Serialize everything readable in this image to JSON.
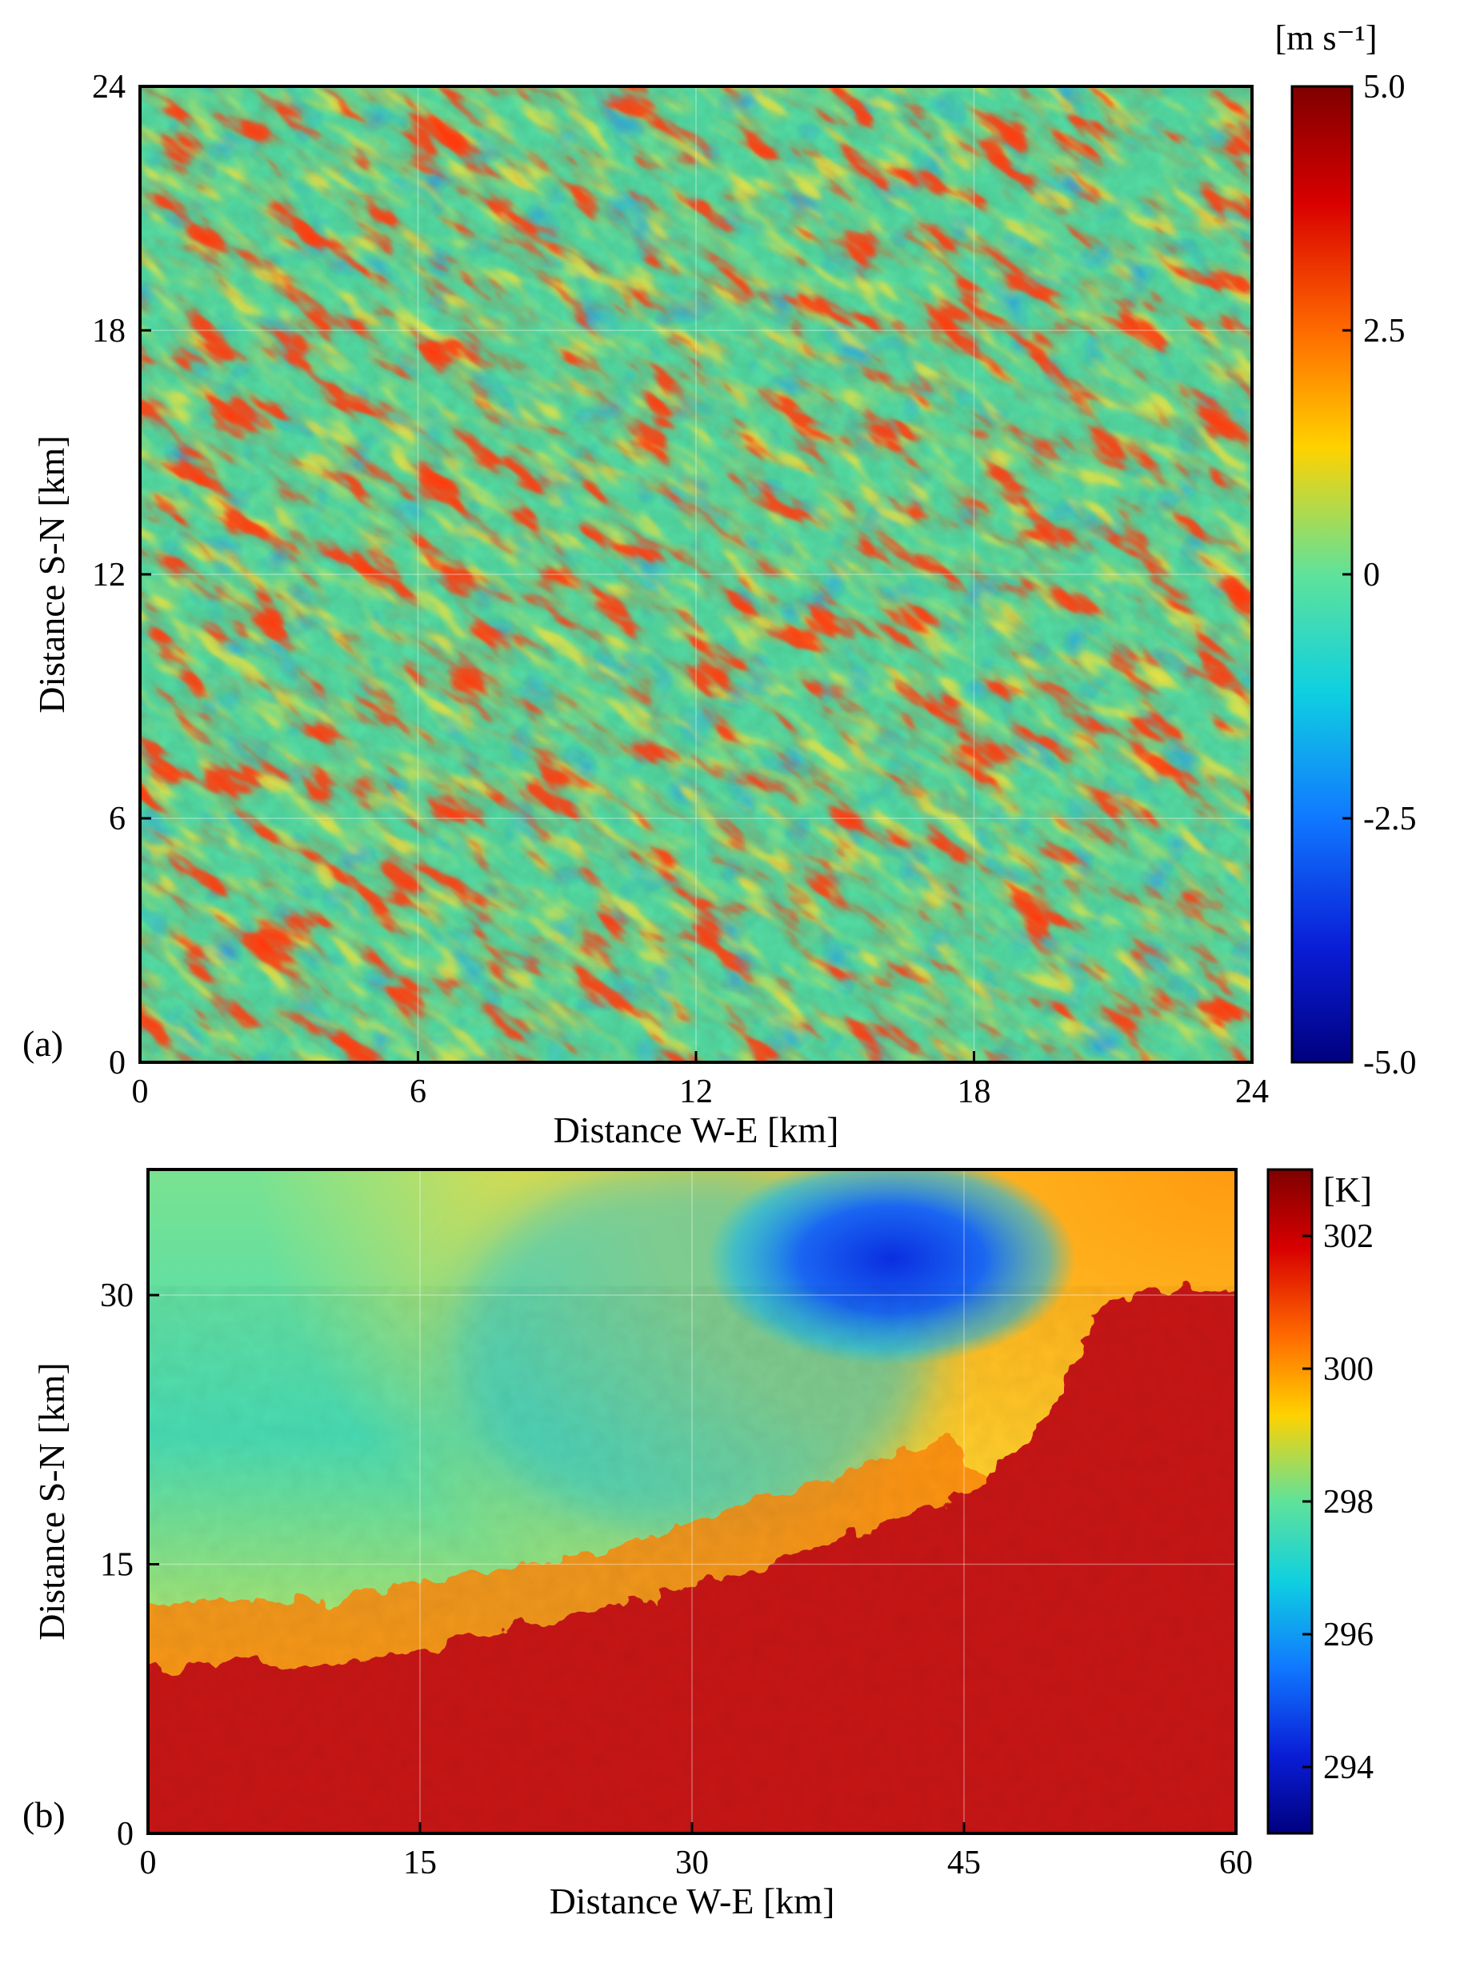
{
  "chart_data": [
    {
      "type": "heatmap",
      "panel_label": "(a)",
      "xlabel": "Distance W-E [km]",
      "ylabel": "Distance S-N [km]",
      "xlim": [
        0,
        24
      ],
      "ylim": [
        0,
        24
      ],
      "xticks": [
        0,
        6,
        12,
        18,
        24
      ],
      "yticks": [
        0,
        6,
        12,
        18,
        24
      ],
      "colorbar": {
        "unit": "[m s⁻¹]",
        "range": [
          -5.0,
          5.0
        ],
        "ticks": [
          "5.0",
          "2.5",
          "0",
          "-2.5",
          "-5.0"
        ],
        "tick_values": [
          5.0,
          2.5,
          0,
          -2.5,
          -5.0
        ],
        "colormap": "jet"
      },
      "grid": true,
      "pattern": "convective rolls oriented NW-SE"
    },
    {
      "type": "heatmap",
      "panel_label": "(b)",
      "xlabel": "Distance W-E [km]",
      "ylabel": "Distance S-N [km]",
      "xlim": [
        0,
        60
      ],
      "ylim": [
        0,
        37
      ],
      "xticks": [
        0,
        15,
        30,
        45,
        60
      ],
      "yticks": [
        0,
        15,
        30
      ],
      "colorbar": {
        "unit": "[K]",
        "range": [
          293,
          303
        ],
        "ticks": [
          "302",
          "300",
          "298",
          "296",
          "294"
        ],
        "tick_values": [
          302,
          300,
          298,
          296,
          294
        ],
        "colormap": "jet"
      },
      "grid": true,
      "pattern": "cold pool over warm surface"
    }
  ]
}
